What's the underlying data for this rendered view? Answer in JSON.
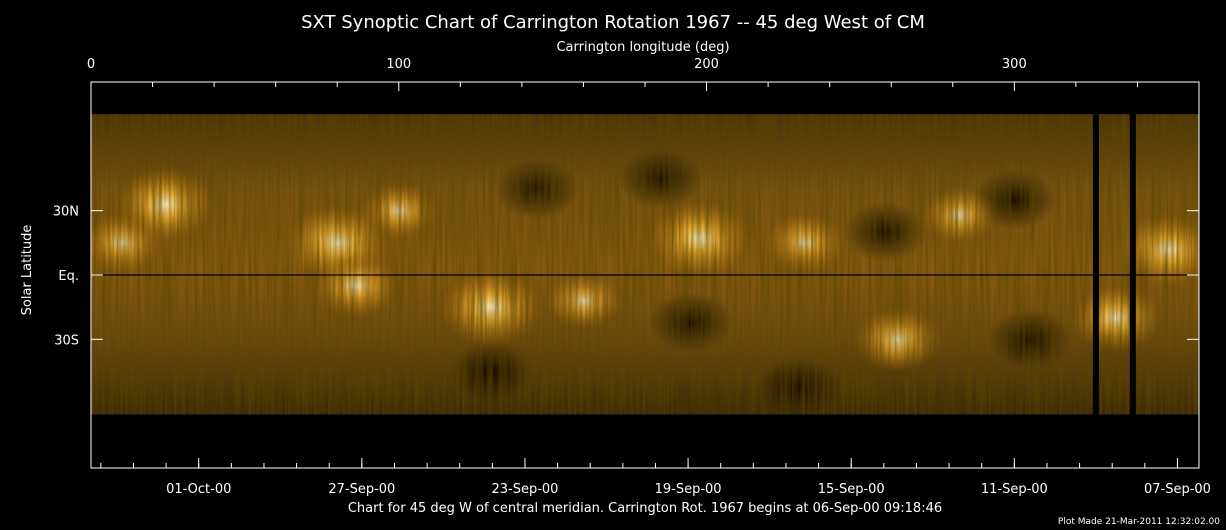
{
  "chart_data": {
    "type": "heatmap",
    "title": "SXT Synoptic Chart of Carrington Rotation 1967 -- 45 deg West of CM",
    "top_axis": {
      "label": "Carrington longitude (deg)",
      "range": [
        0,
        360
      ],
      "ticks": [
        {
          "value": 0,
          "label": "0"
        },
        {
          "value": 100,
          "label": "100"
        },
        {
          "value": 200,
          "label": "200"
        },
        {
          "value": 300,
          "label": "300"
        }
      ]
    },
    "left_axis": {
      "label": "Solar Latitude",
      "range": [
        -90,
        90
      ],
      "ticks": [
        {
          "value": 30,
          "label": "30N"
        },
        {
          "value": 0,
          "label": "Eq."
        },
        {
          "value": -30,
          "label": "30S"
        }
      ]
    },
    "bottom_axis": {
      "ticks": [
        {
          "lon": 35,
          "label": "01-Oct-00"
        },
        {
          "lon": 88,
          "label": "27-Sep-00"
        },
        {
          "lon": 141,
          "label": "23-Sep-00"
        },
        {
          "lon": 194,
          "label": "19-Sep-00"
        },
        {
          "lon": 247,
          "label": "15-Sep-00"
        },
        {
          "lon": 300,
          "label": "11-Sep-00"
        },
        {
          "lon": 353,
          "label": "07-Sep-00"
        }
      ]
    },
    "data_gaps_lon": [
      326.5,
      338.5
    ],
    "bright_regions": [
      {
        "lon": 24,
        "lat": 33,
        "intensity": 0.95
      },
      {
        "lon": 80,
        "lat": 15,
        "intensity": 1.0
      },
      {
        "lon": 86,
        "lat": -5,
        "intensity": 0.7
      },
      {
        "lon": 130,
        "lat": -15,
        "intensity": 1.0
      },
      {
        "lon": 198,
        "lat": 17,
        "intensity": 1.0
      },
      {
        "lon": 262,
        "lat": -30,
        "intensity": 0.75
      },
      {
        "lon": 232,
        "lat": 15,
        "intensity": 0.6
      },
      {
        "lon": 350,
        "lat": 12,
        "intensity": 0.9
      },
      {
        "lon": 333,
        "lat": -20,
        "intensity": 0.8
      },
      {
        "lon": 10,
        "lat": 15,
        "intensity": 0.6
      },
      {
        "lon": 100,
        "lat": 30,
        "intensity": 0.55
      },
      {
        "lon": 160,
        "lat": -12,
        "intensity": 0.55
      },
      {
        "lon": 282,
        "lat": 28,
        "intensity": 0.55
      }
    ],
    "dark_regions": [
      {
        "lon": 185,
        "lat": 45
      },
      {
        "lon": 195,
        "lat": -22
      },
      {
        "lon": 258,
        "lat": 20
      },
      {
        "lon": 300,
        "lat": 35
      },
      {
        "lon": 145,
        "lat": 40
      },
      {
        "lon": 130,
        "lat": -45
      },
      {
        "lon": 305,
        "lat": -30
      },
      {
        "lon": 230,
        "lat": -52
      }
    ],
    "colors": {
      "bright": "#ffe7a0",
      "mid": "#9a6410",
      "dark": "#1c1002",
      "background": "#000000"
    }
  },
  "footer": {
    "caption": "Chart for 45 deg W of central meridian.  Carrington Rot. 1967 begins at 06-Sep-00 09:18:46",
    "plot_made": "Plot Made 21-Mar-2011 12:32:02.00"
  }
}
